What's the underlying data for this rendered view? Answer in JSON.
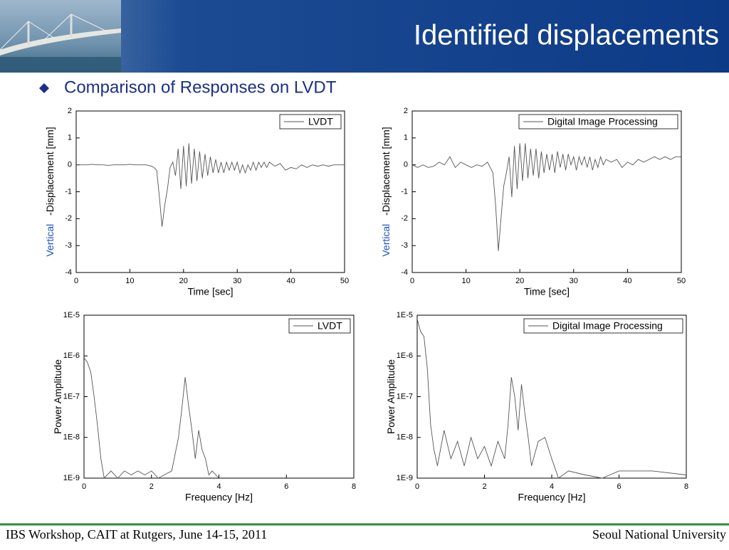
{
  "title": "Identified displacements",
  "bullet": "Comparison of Responses on LVDT",
  "footer_left": "IBS Workshop, CAIT at Rutgers, June 14-15, 2011",
  "footer_right": "Seoul National University",
  "chart_data": [
    {
      "type": "line",
      "xlabel": "Time [sec]",
      "ylabel_prefix": "Vertical",
      "ylabel": "-Displacement [mm]",
      "xlim": [
        0,
        50
      ],
      "xticks": [
        0,
        10,
        20,
        30,
        40,
        50
      ],
      "ylim": [
        -4,
        2
      ],
      "yticks": [
        -4,
        -3,
        -2,
        -1,
        0,
        1,
        2
      ],
      "legend": "upper right",
      "log_y": false,
      "x": [
        0,
        1,
        2,
        3,
        4,
        5,
        6,
        7,
        8,
        9,
        10,
        11,
        12,
        13,
        14,
        14.5,
        15,
        15.5,
        16,
        16.5,
        17,
        17.5,
        18,
        18.5,
        19,
        19.5,
        20,
        20.5,
        21,
        21.5,
        22,
        22.5,
        23,
        23.5,
        24,
        24.5,
        25,
        25.5,
        26,
        26.5,
        27,
        27.5,
        28,
        28.5,
        29,
        29.5,
        30,
        30.5,
        31,
        31.5,
        32,
        32.5,
        33,
        33.5,
        34,
        34.5,
        35,
        35.5,
        36,
        37,
        38,
        39,
        40,
        41,
        42,
        43,
        44,
        45,
        46,
        47,
        48,
        49,
        50
      ],
      "series": [
        {
          "name": "LVDT",
          "color": "#555555",
          "values": [
            0,
            0,
            0,
            0.02,
            0,
            0,
            -0.02,
            0,
            0,
            0,
            0.02,
            0,
            0,
            0,
            -0.05,
            -0.1,
            -0.2,
            -1.2,
            -2.3,
            -1.5,
            -0.9,
            -0.1,
            0.1,
            -0.4,
            0.6,
            -0.9,
            0.7,
            -0.8,
            0.8,
            -0.7,
            0.6,
            -0.6,
            0.5,
            -0.5,
            0.4,
            -0.4,
            0.3,
            -0.3,
            0.2,
            -0.3,
            0.1,
            -0.3,
            0.1,
            -0.2,
            0.1,
            -0.2,
            0.1,
            -0.3,
            0,
            -0.3,
            0,
            -0.2,
            0.1,
            -0.2,
            0.1,
            -0.1,
            0.1,
            -0.1,
            0.1,
            -0.05,
            0.05,
            -0.2,
            -0.1,
            -0.15,
            0,
            -0.1,
            0,
            -0.05,
            0,
            -0.05,
            0,
            0,
            0
          ]
        }
      ]
    },
    {
      "type": "line",
      "xlabel": "Time [sec]",
      "ylabel_prefix": "Vertical",
      "ylabel": "-Displacement [mm]",
      "xlim": [
        0,
        50
      ],
      "xticks": [
        0,
        10,
        20,
        30,
        40,
        50
      ],
      "ylim": [
        -4,
        2
      ],
      "yticks": [
        -4,
        -3,
        -2,
        -1,
        0,
        1,
        2
      ],
      "legend": "upper right",
      "log_y": false,
      "x": [
        0,
        1,
        2,
        3,
        4,
        5,
        6,
        7,
        8,
        9,
        10,
        11,
        12,
        13,
        14,
        14.5,
        15,
        15.5,
        16,
        16.5,
        17,
        17.5,
        18,
        18.5,
        19,
        19.5,
        20,
        20.5,
        21,
        21.5,
        22,
        22.5,
        23,
        23.5,
        24,
        24.5,
        25,
        25.5,
        26,
        26.5,
        27,
        27.5,
        28,
        28.5,
        29,
        29.5,
        30,
        30.5,
        31,
        31.5,
        32,
        32.5,
        33,
        33.5,
        34,
        34.5,
        35,
        35.5,
        36,
        37,
        38,
        39,
        40,
        41,
        42,
        43,
        44,
        45,
        46,
        47,
        48,
        49,
        50
      ],
      "series": [
        {
          "name": "Digital Image Processing",
          "color": "#555555",
          "values": [
            0,
            -0.1,
            0,
            -0.1,
            -0.05,
            0.1,
            0,
            0.3,
            -0.1,
            0.1,
            0,
            -0.1,
            0,
            -0.05,
            0.1,
            -0.1,
            -0.3,
            -1.5,
            -3.2,
            -2.0,
            -0.8,
            -0.3,
            0.3,
            -1.2,
            0.7,
            -0.9,
            0.8,
            -0.6,
            0.8,
            -0.5,
            0.6,
            -0.4,
            0.6,
            -0.5,
            0.5,
            -0.3,
            0.4,
            -0.2,
            0.4,
            -0.3,
            0.5,
            -0.1,
            0.4,
            -0.2,
            0.4,
            0,
            0.3,
            -0.2,
            0.3,
            0,
            0.3,
            -0.1,
            0.3,
            -0.2,
            0.2,
            -0.1,
            0.3,
            0,
            0.2,
            0.1,
            0.2,
            -0.1,
            0.1,
            0,
            0.2,
            0.1,
            0.2,
            0.3,
            0.2,
            0.3,
            0.2,
            0.3,
            0.3
          ]
        }
      ]
    },
    {
      "type": "line",
      "xlabel": "Frequency [Hz]",
      "ylabel": "Power Amplitude",
      "xlim": [
        0,
        8
      ],
      "xticks": [
        0,
        2,
        4,
        6,
        8
      ],
      "ylim": [
        1e-09,
        1e-05
      ],
      "log_y": true,
      "yticks": [
        {
          "value": 1e-09,
          "label": "1E-9"
        },
        {
          "value": 1e-08,
          "label": "1E-8"
        },
        {
          "value": 1e-07,
          "label": "1E-7"
        },
        {
          "value": 1e-06,
          "label": "1E-6"
        },
        {
          "value": 1e-05,
          "label": "1E-5"
        }
      ],
      "legend": "upper right",
      "x": [
        0,
        0.1,
        0.2,
        0.3,
        0.4,
        0.5,
        0.6,
        0.8,
        1.0,
        1.2,
        1.4,
        1.6,
        1.8,
        2.0,
        2.2,
        2.6,
        2.8,
        2.9,
        3.0,
        3.1,
        3.2,
        3.3,
        3.4,
        3.5,
        3.6,
        3.7,
        3.8,
        4.0
      ],
      "series": [
        {
          "name": "LVDT",
          "color": "#555555",
          "values": [
            9e-07,
            7e-07,
            4e-07,
            1e-07,
            2e-08,
            3e-09,
            1e-09,
            1.5e-09,
            1e-09,
            1.5e-09,
            1.2e-09,
            1.5e-09,
            1.2e-09,
            1.5e-09,
            1e-09,
            1.5e-09,
            1e-08,
            5e-08,
            3e-07,
            6e-08,
            1.5e-08,
            3e-09,
            1.5e-08,
            5e-09,
            3e-09,
            1.2e-09,
            1.5e-09,
            1e-09
          ]
        }
      ]
    },
    {
      "type": "line",
      "xlabel": "Frequency [Hz]",
      "ylabel": "Power Amplitude",
      "xlim": [
        0,
        8
      ],
      "xticks": [
        0,
        2,
        4,
        6,
        8
      ],
      "ylim": [
        1e-09,
        1e-05
      ],
      "log_y": true,
      "yticks": [
        {
          "value": 1e-09,
          "label": "1E-9"
        },
        {
          "value": 1e-08,
          "label": "1E-8"
        },
        {
          "value": 1e-07,
          "label": "1E-7"
        },
        {
          "value": 1e-06,
          "label": "1E-6"
        },
        {
          "value": 1e-05,
          "label": "1E-5"
        }
      ],
      "legend": "upper right",
      "x": [
        0,
        0.1,
        0.2,
        0.3,
        0.4,
        0.5,
        0.6,
        0.8,
        1.0,
        1.2,
        1.4,
        1.6,
        1.8,
        2.0,
        2.2,
        2.4,
        2.6,
        2.7,
        2.8,
        2.9,
        3.0,
        3.1,
        3.2,
        3.3,
        3.4,
        3.6,
        3.8,
        4.0,
        4.2,
        4.5,
        5.0,
        5.5,
        6.0,
        7.0,
        8.0
      ],
      "series": [
        {
          "name": "Digital Image Processing",
          "color": "#555555",
          "values": [
            8e-06,
            4e-06,
            3e-06,
            5e-07,
            2e-08,
            5e-09,
            2e-09,
            1.5e-08,
            3e-09,
            8e-09,
            2e-09,
            1e-08,
            3e-09,
            6e-09,
            2e-09,
            8e-09,
            3e-09,
            2e-08,
            3e-07,
            1e-07,
            1.5e-08,
            2e-07,
            4e-08,
            1e-08,
            2e-09,
            8e-09,
            1e-08,
            3e-09,
            1e-09,
            1.5e-09,
            1.2e-09,
            1e-09,
            1.5e-09,
            1.5e-09,
            1.2e-09
          ]
        }
      ]
    }
  ]
}
